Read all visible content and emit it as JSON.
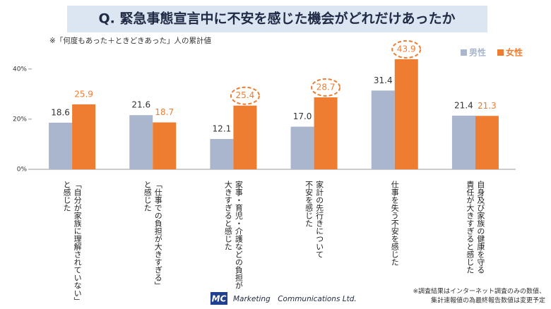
{
  "chart_data": {
    "type": "bar",
    "title": "Q. 緊急事態宣言中に不安を感じた機会がどれだけあったか",
    "subtitle": "※「何度もあった＋ときどきあった」人の累計値",
    "categories": [
      [
        "「自分が家族に理解されていない」",
        "と感じた"
      ],
      [
        "「仕事での負担が大きすぎる」",
        "と感じた"
      ],
      [
        "家事・育児・介護などの負担が",
        "大きすぎると感じた"
      ],
      [
        "家計の先行きについて",
        "不安を感じた"
      ],
      [
        "仕事を失う不安を感じた"
      ],
      [
        "自身及び家族の健康を守る",
        "責任が大きすぎると感じた"
      ]
    ],
    "series": [
      {
        "name": "男性",
        "color": "#a9b6cd",
        "values": [
          18.6,
          21.6,
          12.1,
          17.0,
          31.4,
          21.4
        ],
        "value_labels": [
          "18.6",
          "21.6",
          "12.1",
          "17.0",
          "31.4",
          "21.4"
        ]
      },
      {
        "name": "女性",
        "color": "#ee7d31",
        "values": [
          25.9,
          18.7,
          25.4,
          28.7,
          43.9,
          21.3
        ],
        "value_labels": [
          "25.9",
          "18.7",
          "25.4",
          "28.7",
          "43.9",
          "21.3"
        ],
        "circled": [
          false,
          false,
          true,
          true,
          true,
          false
        ]
      }
    ],
    "ylim": [
      0,
      45
    ],
    "yticks": [
      {
        "value": 0,
        "label": "0%"
      },
      {
        "value": 20,
        "label": "20%"
      },
      {
        "value": 40,
        "label": "40%"
      }
    ],
    "legend": "top-right",
    "footer": {
      "logo": "MC",
      "company": "Marketing　Communications Ltd."
    },
    "notes": [
      "※調査結果はインターネット調査のみの数値、",
      "集計速報値の為最終報告数値は変更予定"
    ]
  }
}
